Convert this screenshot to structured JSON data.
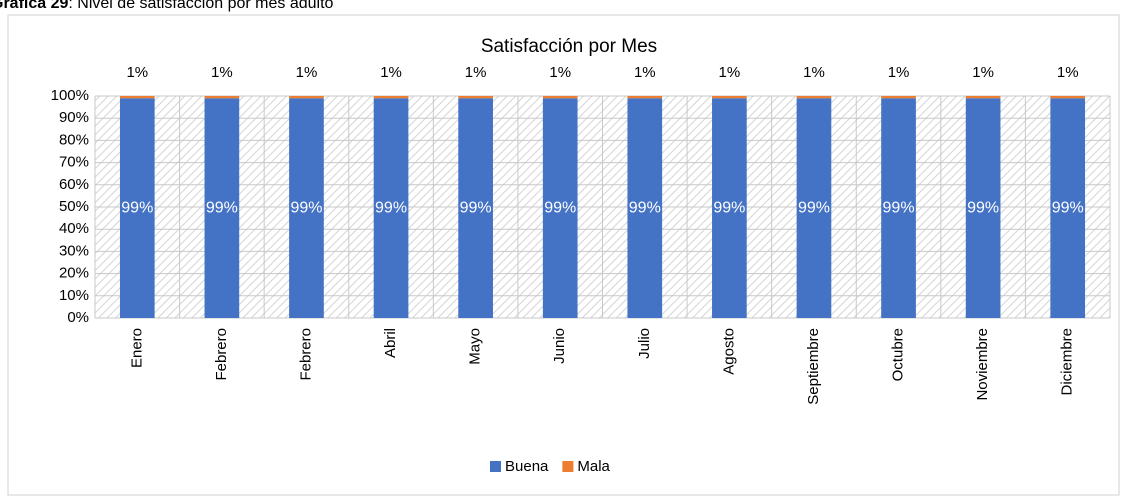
{
  "caption": {
    "label": "Gráfica 29",
    "text": ": Nivel de satisfacción por mes  adulto"
  },
  "chart_data": {
    "type": "stacked_bar",
    "title": "Satisfacción por Mes",
    "categories": [
      "Enero",
      "Febrero",
      "Febrero",
      "Abril",
      "Mayo",
      "Junio",
      "Julio",
      "Agosto",
      "Septiembre",
      "Octubre",
      "Noviembre",
      "Diciembre"
    ],
    "series": [
      {
        "name": "Buena",
        "color": "#4472c4",
        "values": [
          99,
          99,
          99,
          99,
          99,
          99,
          99,
          99,
          99,
          99,
          99,
          99
        ],
        "value_labels": [
          "99%",
          "99%",
          "99%",
          "99%",
          "99%",
          "99%",
          "99%",
          "99%",
          "99%",
          "99%",
          "99%",
          "99%"
        ]
      },
      {
        "name": "Mala",
        "color": "#ed7d31",
        "values": [
          1,
          1,
          1,
          1,
          1,
          1,
          1,
          1,
          1,
          1,
          1,
          1
        ],
        "value_labels": [
          "1%",
          "1%",
          "1%",
          "1%",
          "1%",
          "1%",
          "1%",
          "1%",
          "1%",
          "1%",
          "1%",
          "1%"
        ]
      }
    ],
    "ylim": [
      0,
      100
    ],
    "yticks": [
      {
        "value": 0,
        "label": "0%"
      },
      {
        "value": 10,
        "label": "10%"
      },
      {
        "value": 20,
        "label": "20%"
      },
      {
        "value": 30,
        "label": "30%"
      },
      {
        "value": 40,
        "label": "40%"
      },
      {
        "value": 50,
        "label": "50%"
      },
      {
        "value": 60,
        "label": "60%"
      },
      {
        "value": 70,
        "label": "70%"
      },
      {
        "value": 80,
        "label": "80%"
      },
      {
        "value": 90,
        "label": "90%"
      },
      {
        "value": 100,
        "label": "100%"
      }
    ],
    "grid": true,
    "legend": "bottom"
  }
}
